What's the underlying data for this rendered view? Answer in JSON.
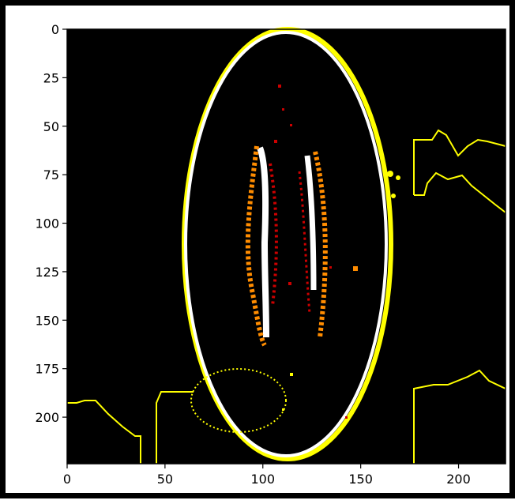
{
  "chart_data": {
    "type": "image",
    "x_ticks": [
      "0",
      "50",
      "100",
      "150",
      "200"
    ],
    "y_ticks": [
      "0",
      "25",
      "50",
      "75",
      "100",
      "125",
      "150",
      "175",
      "200"
    ],
    "xlim": [
      0,
      224
    ],
    "ylim": [
      224,
      0
    ]
  },
  "colors": {
    "background": "#000000",
    "yellow": "#ffff00",
    "white": "#ffffff",
    "orange": "#ff8c00",
    "red": "#cc0000"
  }
}
